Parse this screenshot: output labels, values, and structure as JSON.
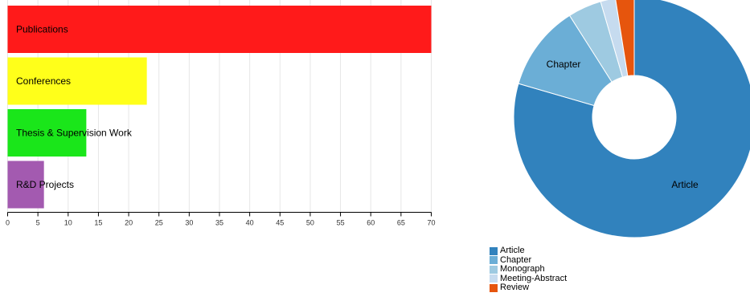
{
  "chart_data": [
    {
      "type": "bar",
      "orientation": "horizontal",
      "categories": [
        "Publications",
        "Conferences",
        "Thesis & Supervision Work",
        "R&D Projects"
      ],
      "values": [
        70,
        23,
        13,
        6
      ],
      "colors": [
        "#ff1a1a",
        "#ffff1a",
        "#1ae61a",
        "#a35ab0"
      ],
      "xlim": [
        0,
        70
      ],
      "xticks": [
        0,
        5,
        10,
        15,
        20,
        25,
        30,
        35,
        40,
        45,
        50,
        55,
        60,
        65,
        70
      ],
      "grid": true,
      "title": "",
      "xlabel": "",
      "ylabel": ""
    },
    {
      "type": "pie",
      "donut": true,
      "labels": [
        "Article",
        "Chapter",
        "Monograph",
        "Meeting-Abstract",
        "Review"
      ],
      "values": [
        79.5,
        11.5,
        4.5,
        2.0,
        2.5
      ],
      "colors": [
        "#3182bd",
        "#6baed6",
        "#9ecae1",
        "#c6dbef",
        "#e6550d"
      ],
      "slice_labels_shown": [
        "Article",
        "Chapter"
      ],
      "legend": "bottom-left"
    }
  ]
}
